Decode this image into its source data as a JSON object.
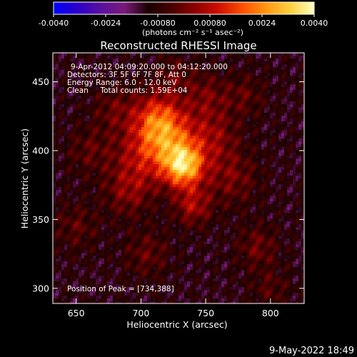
{
  "colorbar": {
    "ticks": [
      "-0.0040",
      "-0.0024",
      "-0.00080",
      "0.00080",
      "0.0024",
      "0.0040"
    ],
    "units": "(photons cm⁻² s⁻¹ asec⁻²)"
  },
  "chart_data": {
    "type": "heatmap",
    "title": "Reconstructed RHESSI Image",
    "xlabel": "Heliocentric X (arcsec)",
    "ylabel": "Heliocentric Y (arcsec)",
    "xlim": [
      632,
      826
    ],
    "ylim": [
      289,
      471
    ],
    "xticks": [
      650,
      700,
      750,
      800
    ],
    "yticks": [
      300,
      350,
      400,
      450
    ],
    "zlim": [
      -0.004,
      0.004
    ],
    "peak": [
      734,
      388
    ],
    "sources": [
      {
        "x": 733,
        "y": 389,
        "sigma": 11,
        "amp": 0.004
      },
      {
        "x": 720,
        "y": 410,
        "sigma": 15,
        "amp": 0.0024
      },
      {
        "x": 712,
        "y": 425,
        "sigma": 13,
        "amp": 0.0018
      },
      {
        "x": 740,
        "y": 360,
        "sigma": 10,
        "amp": 0.0016
      },
      {
        "x": 700,
        "y": 395,
        "sigma": 16,
        "amp": 0.0014
      },
      {
        "x": 755,
        "y": 410,
        "sigma": 14,
        "amp": 0.0013
      },
      {
        "x": 690,
        "y": 370,
        "sigma": 13,
        "amp": 0.0011
      },
      {
        "x": 770,
        "y": 380,
        "sigma": 14,
        "amp": 0.0011
      },
      {
        "x": 750,
        "y": 440,
        "sigma": 12,
        "amp": 0.001
      },
      {
        "x": 680,
        "y": 430,
        "sigma": 12,
        "amp": 0.0009
      },
      {
        "x": 660,
        "y": 400,
        "sigma": 12,
        "amp": 0.0008
      },
      {
        "x": 705,
        "y": 325,
        "sigma": 12,
        "amp": 0.0009
      },
      {
        "x": 790,
        "y": 330,
        "sigma": 11,
        "amp": 0.001
      },
      {
        "x": 780,
        "y": 440,
        "sigma": 11,
        "amp": 0.0008
      },
      {
        "x": 800,
        "y": 300,
        "sigma": 10,
        "amp": 0.0007
      },
      {
        "x": 650,
        "y": 345,
        "sigma": 12,
        "amp": 0.0008
      },
      {
        "x": 725,
        "y": 455,
        "sigma": 10,
        "amp": 0.0008
      }
    ],
    "colorscale": [
      "#0000ff",
      "#2a00c8",
      "#5a10a0",
      "#7a1a78",
      "#1a0000",
      "#4a0000",
      "#900000",
      "#d01000",
      "#ff5000",
      "#ff9a10",
      "#ffd040",
      "#ffffc0"
    ],
    "annotations": [
      "9-Apr-2012 04:09:20.000 to 04:12:20.000",
      "Detectors: 3F 5F 6F 7F 8F, Att 0",
      "Energy Range: 6.0 - 12.0 keV",
      "Clean     Total counts: 1.59E+04"
    ],
    "peak_label": "Position of Peak = [734,388]"
  },
  "footer": {
    "timestamp": "9-May-2022 18:49"
  }
}
